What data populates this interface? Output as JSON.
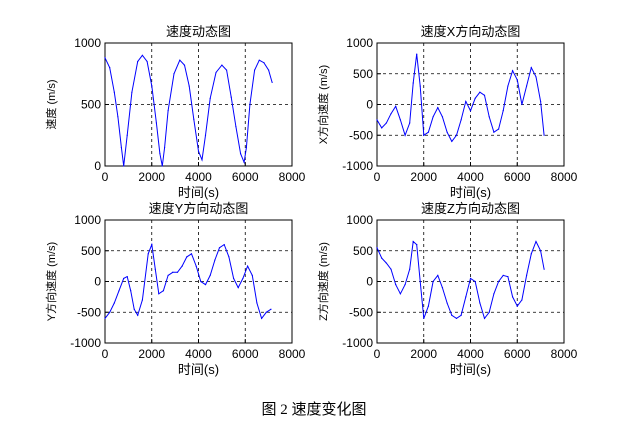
{
  "figure_caption": "图 2  速度变化图",
  "chart_data": [
    {
      "type": "line",
      "title": "速度动态图",
      "xlabel": "时间(s)",
      "ylabel": "速度 (m/s)",
      "xlim": [
        0,
        8000
      ],
      "ylim": [
        0,
        1000
      ],
      "xticks": [
        0,
        2000,
        4000,
        6000,
        8000
      ],
      "yticks": [
        0,
        500,
        1000
      ],
      "xtick_labels": [
        "0",
        "2000",
        "4000",
        "6000",
        "8000"
      ],
      "ytick_labels": [
        "0",
        "500",
        "1000"
      ],
      "grid": true,
      "line_color": "#0000ff",
      "series": [
        {
          "x": [
            0,
            200,
            400,
            550,
            700,
            800,
            950,
            1150,
            1400,
            1600,
            1800,
            2000,
            2200,
            2350,
            2450,
            2550,
            2700,
            2950,
            3200,
            3400,
            3600,
            3800,
            4000,
            4150,
            4300,
            4500,
            4750,
            5000,
            5200,
            5400,
            5600,
            5800,
            5950,
            6050,
            6200,
            6400,
            6600,
            6800,
            7000,
            7150
          ],
          "y": [
            880,
            800,
            600,
            400,
            150,
            0,
            250,
            600,
            850,
            900,
            850,
            650,
            350,
            100,
            0,
            150,
            450,
            750,
            860,
            820,
            650,
            380,
            120,
            50,
            250,
            550,
            760,
            820,
            780,
            560,
            320,
            100,
            30,
            150,
            500,
            780,
            860,
            840,
            780,
            680
          ]
        }
      ]
    },
    {
      "type": "line",
      "title": "速度X方向动态图",
      "xlabel": "时间(s)",
      "ylabel": "X方向速度 (m/s)",
      "xlim": [
        0,
        8000
      ],
      "ylim": [
        -1000,
        1000
      ],
      "xticks": [
        0,
        2000,
        4000,
        6000,
        8000
      ],
      "yticks": [
        -1000,
        -500,
        0,
        500,
        1000
      ],
      "xtick_labels": [
        "0",
        "2000",
        "4000",
        "6000",
        "8000"
      ],
      "ytick_labels": [
        "-1000",
        "-500",
        "0",
        "500",
        "1000"
      ],
      "grid": true,
      "line_color": "#0000ff",
      "series": [
        {
          "x": [
            0,
            200,
            400,
            600,
            800,
            1000,
            1200,
            1400,
            1550,
            1700,
            1850,
            2000,
            2200,
            2400,
            2600,
            2800,
            3000,
            3200,
            3400,
            3600,
            3800,
            4000,
            4200,
            4400,
            4600,
            4800,
            5000,
            5200,
            5400,
            5600,
            5800,
            6000,
            6200,
            6400,
            6600,
            6800,
            7000,
            7150
          ],
          "y": [
            -250,
            -380,
            -300,
            -150,
            -30,
            -250,
            -500,
            -300,
            350,
            820,
            300,
            -500,
            -450,
            -200,
            -50,
            -200,
            -450,
            -600,
            -500,
            -250,
            50,
            -100,
            100,
            200,
            150,
            -200,
            -450,
            -400,
            -100,
            300,
            550,
            400,
            0,
            300,
            600,
            450,
            50,
            -500
          ]
        }
      ]
    },
    {
      "type": "line",
      "title": "速度Y方向动态图",
      "xlabel": "时间(s)",
      "ylabel": "Y方向速度 (m/s)",
      "xlim": [
        0,
        8000
      ],
      "ylim": [
        -1000,
        1000
      ],
      "xticks": [
        0,
        2000,
        4000,
        6000,
        8000
      ],
      "yticks": [
        -1000,
        -500,
        0,
        500,
        1000
      ],
      "xtick_labels": [
        "0",
        "2000",
        "4000",
        "6000",
        "8000"
      ],
      "ytick_labels": [
        "-1000",
        "-500",
        "0",
        "500",
        "1000"
      ],
      "grid": true,
      "line_color": "#0000ff",
      "series": [
        {
          "x": [
            0,
            200,
            400,
            600,
            800,
            950,
            1100,
            1250,
            1400,
            1600,
            1850,
            2000,
            2150,
            2300,
            2500,
            2700,
            2900,
            3100,
            3300,
            3500,
            3700,
            3900,
            4100,
            4300,
            4500,
            4700,
            4900,
            5100,
            5300,
            5500,
            5700,
            5900,
            6100,
            6300,
            6500,
            6700,
            6900,
            7100
          ],
          "y": [
            -600,
            -500,
            -350,
            -150,
            50,
            80,
            -150,
            -450,
            -550,
            -300,
            450,
            600,
            200,
            -200,
            -150,
            100,
            150,
            150,
            250,
            400,
            450,
            250,
            0,
            -50,
            100,
            350,
            550,
            600,
            400,
            50,
            -100,
            50,
            250,
            100,
            -350,
            -600,
            -500,
            -450
          ]
        }
      ]
    },
    {
      "type": "line",
      "title": "速度Z方向动态图",
      "xlabel": "时间(s)",
      "ylabel": "Z方向速度 (m/s)",
      "xlim": [
        0,
        8000
      ],
      "ylim": [
        -1000,
        1000
      ],
      "xticks": [
        0,
        2000,
        4000,
        6000,
        8000
      ],
      "yticks": [
        -1000,
        -500,
        0,
        500,
        1000
      ],
      "xtick_labels": [
        "0",
        "2000",
        "4000",
        "6000",
        "8000"
      ],
      "ytick_labels": [
        "-1000",
        "-500",
        "0",
        "500",
        "1000"
      ],
      "grid": true,
      "line_color": "#0000ff",
      "series": [
        {
          "x": [
            0,
            200,
            400,
            600,
            800,
            1000,
            1200,
            1400,
            1550,
            1700,
            1850,
            2000,
            2200,
            2400,
            2600,
            2800,
            3000,
            3200,
            3400,
            3600,
            3800,
            4000,
            4200,
            4400,
            4600,
            4800,
            5000,
            5200,
            5400,
            5600,
            5800,
            6000,
            6200,
            6400,
            6600,
            6800,
            7000,
            7150
          ],
          "y": [
            550,
            380,
            300,
            200,
            -50,
            -200,
            -50,
            200,
            650,
            600,
            0,
            -600,
            -400,
            0,
            100,
            -100,
            -350,
            -550,
            -600,
            -550,
            -250,
            50,
            0,
            -350,
            -600,
            -500,
            -200,
            0,
            100,
            80,
            -250,
            -400,
            -300,
            100,
            450,
            650,
            500,
            200
          ]
        }
      ]
    }
  ]
}
